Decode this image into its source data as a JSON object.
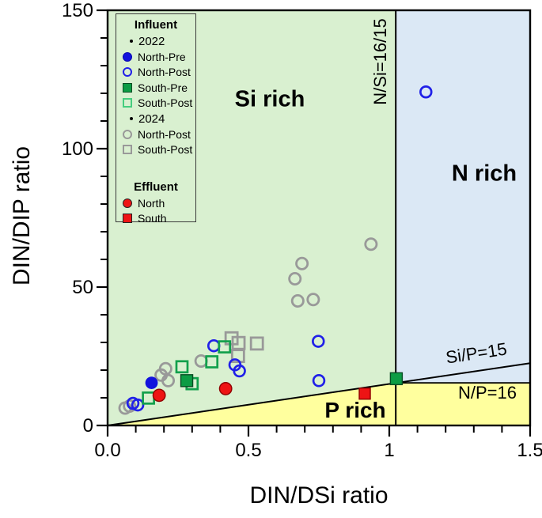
{
  "axes": {
    "x": {
      "title": "DIN/DSi ratio",
      "range": [
        0,
        1.5
      ],
      "major_ticks": [
        0,
        0.5,
        1,
        1.5
      ],
      "tick_labels": [
        "0.0",
        "0.5",
        "1",
        "1.5"
      ],
      "minor_step": 0.1
    },
    "y": {
      "title": "DIN/DIP ratio",
      "range": [
        0,
        150
      ],
      "major_ticks": [
        0,
        50,
        100,
        150
      ],
      "tick_labels": [
        "0",
        "50",
        "100",
        "150"
      ],
      "minor_step": 10
    }
  },
  "regions": {
    "si_rich": {
      "label": "Si rich",
      "color": "#d9f0d0"
    },
    "n_rich": {
      "label": "N rich",
      "color": "#dbe8f5"
    },
    "p_rich": {
      "label": "P rich",
      "color": "#ffff9e"
    }
  },
  "boundary_lines": {
    "n_si": {
      "label": "N/Si=16/15",
      "x": 1.023
    },
    "si_p": {
      "label": "Si/P=15",
      "slope": 15
    },
    "n_p": {
      "label": "N/P=16",
      "y": 15.4
    }
  },
  "legend": {
    "items": [
      {
        "type": "header",
        "label": "Influent"
      },
      {
        "type": "bullet",
        "label": "2022"
      },
      {
        "type": "marker",
        "marker": "circle",
        "style": "filled",
        "color": "#1212dd",
        "edge": "#0909b0",
        "label": "North-Pre"
      },
      {
        "type": "marker",
        "marker": "circle",
        "style": "open",
        "color": "#2020e8",
        "label": "North-Post"
      },
      {
        "type": "marker",
        "marker": "square",
        "style": "filled",
        "color": "#0c9c44",
        "edge": "#064d22",
        "label": "South-Pre"
      },
      {
        "type": "marker",
        "marker": "square",
        "style": "open",
        "color": "#46cd7f",
        "label": "South-Post"
      },
      {
        "type": "bullet",
        "label": "2024"
      },
      {
        "type": "marker",
        "marker": "circle",
        "style": "open",
        "color": "#999999",
        "label": "North-Post"
      },
      {
        "type": "marker",
        "marker": "square",
        "style": "open",
        "color": "#999999",
        "label": "South-Post"
      },
      {
        "type": "spacer",
        "label": ""
      },
      {
        "type": "header",
        "label": "Effluent"
      },
      {
        "type": "marker",
        "marker": "circle",
        "style": "filled",
        "color": "#ee1414",
        "edge": "#222222",
        "label": "North"
      },
      {
        "type": "marker",
        "marker": "square",
        "style": "filled",
        "color": "#ee1414",
        "edge": "#222222",
        "label": "South"
      }
    ]
  },
  "chart_data": {
    "type": "scatter",
    "xlabel": "DIN/DSi ratio",
    "ylabel": "DIN/DIP ratio",
    "xlim": [
      0,
      1.5
    ],
    "ylim": [
      0,
      150
    ],
    "grid": false,
    "legend_position": "upper-left",
    "series": [
      {
        "group": "Influent 2022",
        "name": "North-Pre",
        "marker": "circle",
        "style": "filled",
        "color": "#1212dd",
        "edge": "#1212dd",
        "size": 7.2,
        "points": [
          [
            0.156,
            15.4
          ]
        ]
      },
      {
        "group": "Influent 2022",
        "name": "North-Post",
        "marker": "circle",
        "style": "open",
        "color": "#2020e8",
        "size": 6.9,
        "points": [
          [
            0.09,
            8.0
          ],
          [
            0.107,
            7.4
          ],
          [
            0.377,
            28.8
          ],
          [
            0.452,
            21.9
          ],
          [
            0.468,
            19.7
          ],
          [
            0.748,
            30.4
          ],
          [
            0.75,
            16.2
          ],
          [
            1.13,
            120.5
          ]
        ]
      },
      {
        "group": "Influent 2022",
        "name": "South-Pre",
        "marker": "square",
        "style": "filled",
        "color": "#0c9c44",
        "edge": "#064d22",
        "size": 7.5,
        "points": [
          [
            0.281,
            16.2
          ],
          [
            1.025,
            16.9
          ]
        ]
      },
      {
        "group": "Influent 2022",
        "name": "South-Post",
        "marker": "square",
        "style": "open",
        "color": "#12a04c",
        "size": 7.0,
        "points": [
          [
            0.145,
            9.9
          ],
          [
            0.264,
            21.2
          ],
          [
            0.3,
            15.1
          ],
          [
            0.37,
            23.0
          ],
          [
            0.415,
            28.4
          ]
        ]
      },
      {
        "group": "Influent 2024",
        "name": "North-Post",
        "marker": "circle",
        "style": "open",
        "color": "#999999",
        "size": 7.1,
        "points": [
          [
            0.062,
            6.3
          ],
          [
            0.078,
            7.0
          ],
          [
            0.19,
            18.2
          ],
          [
            0.206,
            20.5
          ],
          [
            0.215,
            16.2
          ],
          [
            0.332,
            23.3
          ],
          [
            0.665,
            53.0
          ],
          [
            0.675,
            45.0
          ],
          [
            0.69,
            58.5
          ],
          [
            0.73,
            45.5
          ],
          [
            0.935,
            65.5
          ]
        ]
      },
      {
        "group": "Influent 2024",
        "name": "South-Post",
        "marker": "square",
        "style": "open",
        "color": "#999999",
        "size": 7.5,
        "points": [
          [
            0.44,
            31.5
          ],
          [
            0.463,
            25.1
          ],
          [
            0.465,
            29.8
          ],
          [
            0.53,
            29.6
          ]
        ]
      },
      {
        "group": "Effluent",
        "name": "North",
        "marker": "circle",
        "style": "filled",
        "color": "#ee1414",
        "edge": "#8f0000",
        "size": 7.7,
        "points": [
          [
            0.183,
            10.9
          ],
          [
            0.419,
            13.3
          ]
        ]
      },
      {
        "group": "Effluent",
        "name": "South",
        "marker": "square",
        "style": "filled",
        "color": "#ee1414",
        "edge": "#8f0000",
        "size": 7.0,
        "points": [
          [
            0.913,
            11.5
          ]
        ]
      }
    ]
  }
}
